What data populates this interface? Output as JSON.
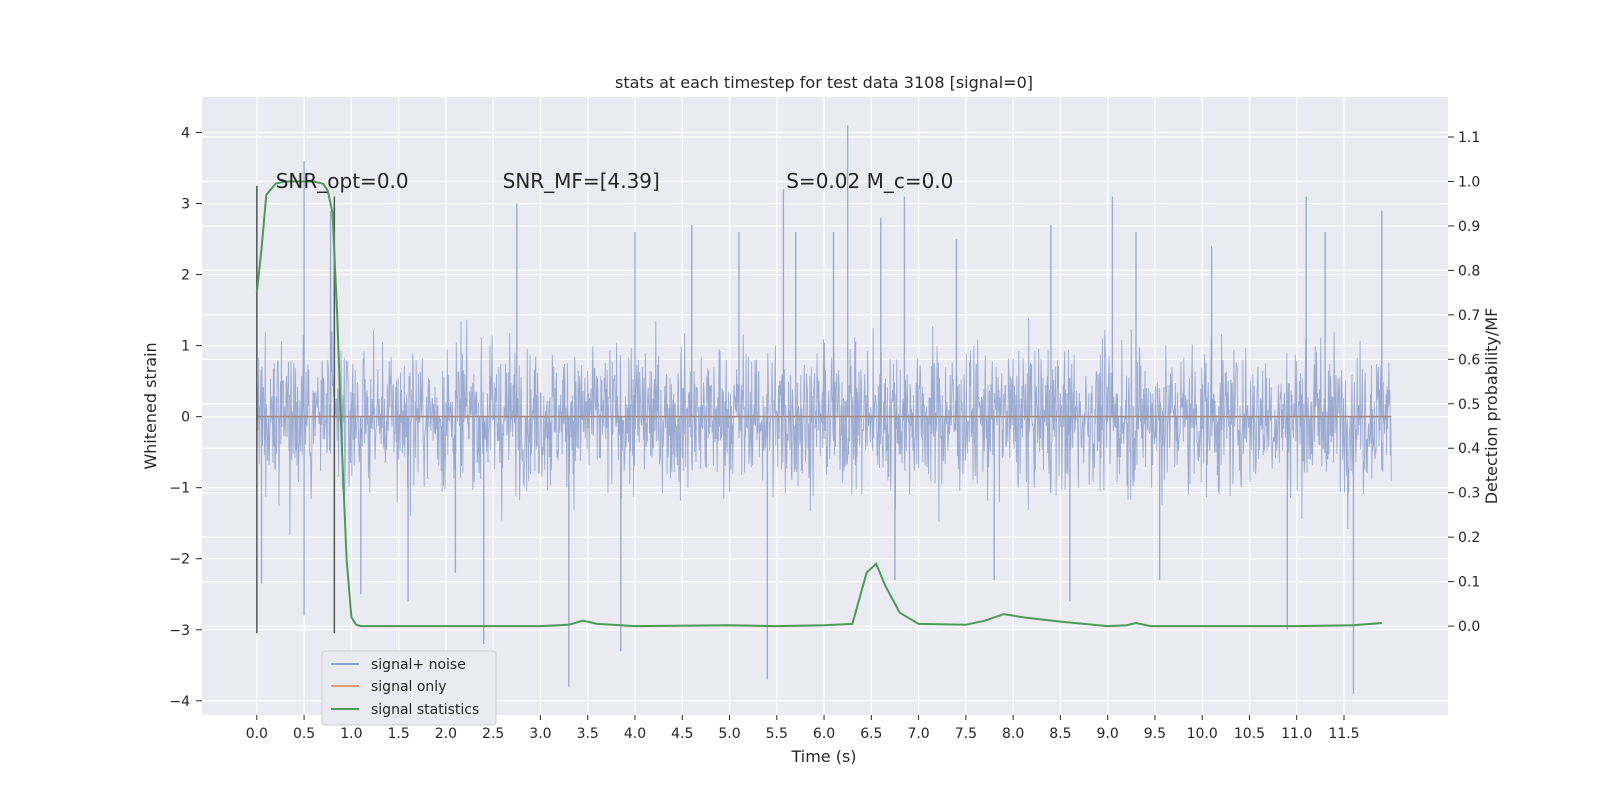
{
  "chart_data": {
    "type": "line",
    "title": "stats at each timestep for test data 3108 [signal=0]",
    "xlabel": "Time (s)",
    "ylabel_left": "Whitened strain",
    "ylabel_right": "Detection probability/MF",
    "xlim": [
      -0.58,
      12.6
    ],
    "ylim_left": [
      -4.2,
      4.5
    ],
    "ylim_right": [
      -0.2,
      1.19
    ],
    "xticks": [
      0.0,
      0.5,
      1.0,
      1.5,
      2.0,
      2.5,
      3.0,
      3.5,
      4.0,
      4.5,
      5.0,
      5.5,
      6.0,
      6.5,
      7.0,
      7.5,
      8.0,
      8.5,
      9.0,
      9.5,
      10.0,
      10.5,
      11.0,
      11.5
    ],
    "xtick_labels": [
      "0.0",
      "0.5",
      "1.0",
      "1.5",
      "2.0",
      "2.5",
      "3.0",
      "3.5",
      "4.0",
      "4.5",
      "5.0",
      "5.5",
      "6.0",
      "6.5",
      "7.0",
      "7.5",
      "8.0",
      "8.5",
      "9.0",
      "9.5",
      "10.0",
      "10.5",
      "11.0",
      "11.5"
    ],
    "yticks_left": [
      -4,
      -3,
      -2,
      -1,
      0,
      1,
      2,
      3,
      4
    ],
    "ytick_labels_left": [
      "−4",
      "−3",
      "−2",
      "−1",
      "0",
      "1",
      "2",
      "3",
      "4"
    ],
    "yticks_right": [
      0.0,
      0.1,
      0.2,
      0.3,
      0.4,
      0.5,
      0.6,
      0.7,
      0.8,
      0.9,
      1.0,
      1.1
    ],
    "ytick_labels_right": [
      "0.0",
      "0.1",
      "0.2",
      "0.3",
      "0.4",
      "0.5",
      "0.6",
      "0.7",
      "0.8",
      "0.9",
      "1.0",
      "1.1"
    ],
    "grid": true,
    "legend_position": "lower-left",
    "annotations": [
      {
        "id": "snr-opt",
        "text": "SNR_opt=0.0",
        "x": 0.2,
        "y": 3.3
      },
      {
        "id": "snr-mf",
        "text": "SNR_MF=[4.39]",
        "x": 2.6,
        "y": 3.3
      },
      {
        "id": "s-mc",
        "text": "S=0.02   M_c=0.0",
        "x": 5.6,
        "y": 3.3
      }
    ],
    "vertical_markers": [
      {
        "x": 0.0,
        "y_range": [
          -3.05,
          3.25
        ]
      },
      {
        "x": 0.82,
        "y_range": [
          -3.05,
          3.1
        ]
      }
    ],
    "series": [
      {
        "name": "signal+ noise",
        "axis": "left",
        "color": "#8da0cb",
        "opacity": 0.85,
        "x_range": [
          0.0,
          12.0
        ],
        "band_high_approx": 1.35,
        "band_low_approx": -1.3,
        "spike_peaks": [
          {
            "x": 0.0,
            "y": 2.9
          },
          {
            "x": 0.05,
            "y": -2.35
          },
          {
            "x": 0.5,
            "y": 3.6
          },
          {
            "x": 0.5,
            "y": -2.8
          },
          {
            "x": 0.78,
            "y": 2.9
          },
          {
            "x": 1.1,
            "y": -2.5
          },
          {
            "x": 1.6,
            "y": -2.6
          },
          {
            "x": 2.1,
            "y": -2.2
          },
          {
            "x": 2.4,
            "y": -3.2
          },
          {
            "x": 2.75,
            "y": 3.0
          },
          {
            "x": 3.3,
            "y": -3.8
          },
          {
            "x": 3.85,
            "y": -3.3
          },
          {
            "x": 4.0,
            "y": 2.6
          },
          {
            "x": 4.6,
            "y": 2.7
          },
          {
            "x": 5.1,
            "y": 2.6
          },
          {
            "x": 5.4,
            "y": -3.7
          },
          {
            "x": 5.57,
            "y": 3.2
          },
          {
            "x": 5.7,
            "y": 2.6
          },
          {
            "x": 6.1,
            "y": 2.6
          },
          {
            "x": 6.25,
            "y": 4.1
          },
          {
            "x": 6.6,
            "y": 2.8
          },
          {
            "x": 6.85,
            "y": 3.1
          },
          {
            "x": 6.75,
            "y": -2.3
          },
          {
            "x": 7.4,
            "y": 2.5
          },
          {
            "x": 7.8,
            "y": -2.3
          },
          {
            "x": 8.4,
            "y": 2.7
          },
          {
            "x": 8.6,
            "y": -2.6
          },
          {
            "x": 9.05,
            "y": 3.1
          },
          {
            "x": 9.3,
            "y": 2.6
          },
          {
            "x": 9.55,
            "y": -2.3
          },
          {
            "x": 10.1,
            "y": 2.4
          },
          {
            "x": 10.9,
            "y": -3.0
          },
          {
            "x": 11.1,
            "y": 3.1
          },
          {
            "x": 11.3,
            "y": 2.6
          },
          {
            "x": 11.6,
            "y": -3.9
          },
          {
            "x": 11.9,
            "y": 2.9
          }
        ]
      },
      {
        "name": "signal only",
        "axis": "left",
        "color": "#e39b7c",
        "x_range": [
          0.0,
          12.0
        ],
        "y_constant": 0.0
      },
      {
        "name": "signal statistics",
        "axis": "right",
        "color": "#4c9a55",
        "x": [
          0.0,
          0.05,
          0.1,
          0.2,
          0.3,
          0.45,
          0.6,
          0.7,
          0.75,
          0.8,
          0.85,
          0.9,
          0.95,
          1.0,
          1.05,
          1.1,
          1.5,
          3.0,
          3.3,
          3.45,
          3.6,
          4.0,
          5.0,
          5.5,
          6.0,
          6.3,
          6.45,
          6.55,
          6.65,
          6.8,
          7.0,
          7.5,
          7.7,
          7.9,
          8.1,
          8.5,
          9.0,
          9.2,
          9.3,
          9.45,
          10.0,
          11.0,
          11.6,
          11.9
        ],
        "y": [
          0.75,
          0.85,
          0.97,
          0.995,
          1.0,
          1.0,
          1.0,
          0.995,
          0.98,
          0.93,
          0.7,
          0.4,
          0.15,
          0.02,
          0.003,
          0.0,
          0.0,
          0.0,
          0.003,
          0.012,
          0.005,
          0.0,
          0.002,
          0.0,
          0.002,
          0.005,
          0.12,
          0.14,
          0.09,
          0.03,
          0.005,
          0.003,
          0.012,
          0.027,
          0.02,
          0.01,
          0.0,
          0.002,
          0.007,
          0.0,
          0.0,
          0.0,
          0.002,
          0.007
        ]
      }
    ]
  }
}
